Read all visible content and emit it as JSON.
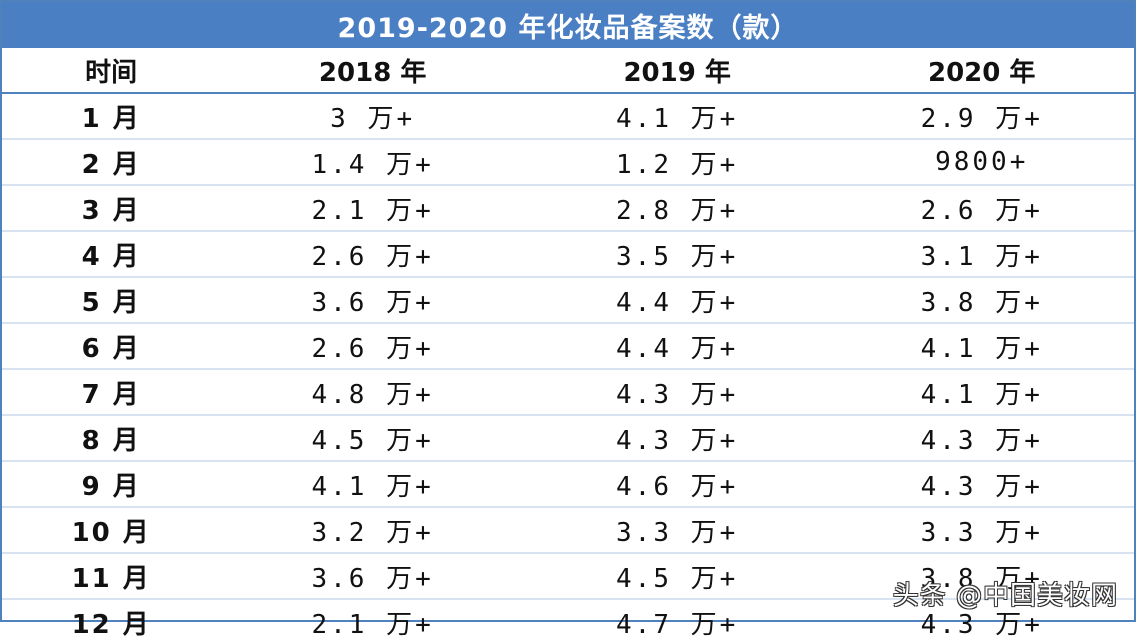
{
  "table": {
    "title": "2019-2020 年化妆品备案数（款）",
    "headers": [
      "时间",
      "2018 年",
      "2019 年",
      "2020 年"
    ],
    "rows": [
      [
        "1 月",
        "3 万+",
        "4.1 万+",
        "2.9 万+"
      ],
      [
        "2 月",
        "1.4 万+",
        "1.2 万+",
        "9800+"
      ],
      [
        "3 月",
        "2.1 万+",
        "2.8 万+",
        "2.6 万+"
      ],
      [
        "4 月",
        "2.6 万+",
        "3.5 万+",
        "3.1 万+"
      ],
      [
        "5 月",
        "3.6 万+",
        "4.4 万+",
        "3.8 万+"
      ],
      [
        "6 月",
        "2.6 万+",
        "4.4 万+",
        "4.1 万+"
      ],
      [
        "7 月",
        "4.8 万+",
        "4.3 万+",
        "4.1 万+"
      ],
      [
        "8 月",
        "4.5 万+",
        "4.3 万+",
        "4.3 万+"
      ],
      [
        "9 月",
        "4.1 万+",
        "4.6 万+",
        "4.3 万+"
      ],
      [
        "10 月",
        "3.2 万+",
        "3.3 万+",
        "3.3 万+"
      ],
      [
        "11 月",
        "3.6 万+",
        "4.5 万+",
        "3.8 万+"
      ],
      [
        "12 月",
        "2.1 万+",
        "4.7 万+",
        "4.3 万+"
      ]
    ]
  },
  "watermark": "头条 @中国美妆网",
  "colors": {
    "title_bg": "#4a7fc3",
    "title_text": "#ffffff",
    "border": "#4f81bd",
    "row_divider": "#d7e3f1"
  }
}
